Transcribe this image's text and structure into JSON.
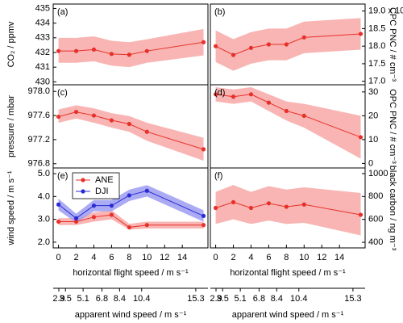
{
  "x_axis": {
    "label": "horizontal flight speed / m s⁻¹",
    "xlim": [
      -0.6,
      16.9
    ],
    "xticks": [
      0,
      2,
      4,
      6,
      8,
      10,
      12,
      14
    ]
  },
  "apparent_axis": {
    "label": "apparent wind speed / m s⁻¹",
    "xlim": [
      2.39,
      16.4
    ],
    "xticks": [
      2.9,
      3.5,
      5.1,
      6.8,
      8.4,
      10.4,
      15.3
    ]
  },
  "chart_data": [
    {
      "type": "line",
      "panel": "(a)",
      "yaxis": "left",
      "row": 0,
      "ylabel": "CO₂ / ppmv",
      "ylim": [
        429.8,
        435.3
      ],
      "yticks": [
        430,
        431,
        432,
        433,
        434,
        435
      ],
      "x": [
        0,
        2,
        4,
        6,
        8,
        10,
        16.4
      ],
      "series": [
        {
          "color": "#e8302a",
          "band_color": "#f7a8a6",
          "values": [
            432.1,
            432.1,
            432.2,
            431.9,
            431.85,
            432.1,
            432.7
          ],
          "lower": [
            431.3,
            431.3,
            431.4,
            431.1,
            431.0,
            431.3,
            431.8
          ],
          "upper": [
            433.0,
            433.0,
            433.1,
            432.8,
            432.7,
            432.9,
            433.6
          ]
        }
      ]
    },
    {
      "type": "line",
      "panel": "(b)",
      "yaxis": "right",
      "row": 0,
      "ylabel": "CPC PNC / # cm⁻³",
      "ylim": [
        16.9,
        19.2
      ],
      "yticks": [
        {
          "value": 17,
          "label": "17.0"
        },
        17.5,
        {
          "value": 18,
          "label": "18.0"
        },
        18.5,
        {
          "value": 19,
          "label": "19.0 x 10³"
        }
      ],
      "x": [
        0,
        2,
        4,
        6,
        8,
        10,
        16.4
      ],
      "series": [
        {
          "color": "#e8302a",
          "band_color": "#f7a8a6",
          "values": [
            18.0,
            17.75,
            17.95,
            18.05,
            18.05,
            18.25,
            18.35
          ],
          "lower": [
            17.55,
            17.3,
            17.5,
            17.6,
            17.6,
            17.8,
            17.9
          ],
          "upper": [
            18.45,
            18.2,
            18.4,
            18.5,
            18.5,
            18.7,
            18.8
          ]
        }
      ]
    },
    {
      "type": "line",
      "panel": "(c)",
      "yaxis": "left",
      "row": 1,
      "ylabel": "pressure / mbar",
      "ylim": [
        976.73,
        978.11
      ],
      "yticks": [
        976.8,
        977.2,
        977.6,
        {
          "value": 978,
          "label": "978.0"
        }
      ],
      "x": [
        0,
        2,
        4,
        6,
        8,
        10,
        16.4
      ],
      "series": [
        {
          "color": "#e8302a",
          "band_color": "#f7a8a6",
          "values": [
            977.58,
            977.66,
            977.6,
            977.52,
            977.46,
            977.33,
            977.04
          ],
          "lower": [
            977.48,
            977.55,
            977.48,
            977.4,
            977.33,
            977.18,
            976.85
          ],
          "upper": [
            977.7,
            977.77,
            977.72,
            977.64,
            977.59,
            977.48,
            977.23
          ]
        }
      ]
    },
    {
      "type": "line",
      "panel": "(d)",
      "yaxis": "right",
      "row": 1,
      "ylabel": "OPC PNC / # cm⁻³",
      "ylim": [
        -1.9,
        33
      ],
      "yticks": [
        0,
        10,
        20,
        30
      ],
      "x": [
        0,
        2,
        4,
        6,
        8,
        10,
        16.4
      ],
      "series": [
        {
          "color": "#e8302a",
          "band_color": "#f7a8a6",
          "values": [
            29,
            28,
            29,
            25.5,
            22,
            20,
            11
          ],
          "lower": [
            26,
            25,
            26,
            22,
            18,
            15,
            2
          ],
          "upper": [
            32,
            31,
            32,
            29,
            26,
            25,
            20
          ]
        }
      ]
    },
    {
      "type": "line",
      "panel": "(e)",
      "yaxis": "left",
      "row": 2,
      "ylabel": "wind speed / m s⁻¹",
      "ylim": [
        1.75,
        5.25
      ],
      "yticks": [
        {
          "value": 2,
          "label": "2.0"
        },
        {
          "value": 3,
          "label": "3.0"
        },
        {
          "value": 4,
          "label": "4.0"
        },
        {
          "value": 5,
          "label": "5.0"
        }
      ],
      "x": [
        0,
        2,
        4,
        6,
        8,
        10,
        16.4
      ],
      "legend": "upper left",
      "series": [
        {
          "name": "ANE",
          "color": "#e8302a",
          "band_color": "#f7a8a6",
          "values": [
            2.9,
            2.9,
            3.1,
            3.2,
            2.65,
            2.75,
            2.75
          ],
          "lower": [
            2.75,
            2.75,
            2.9,
            3.0,
            2.55,
            2.6,
            2.6
          ],
          "upper": [
            3.05,
            3.05,
            3.3,
            3.4,
            2.8,
            2.9,
            2.9
          ]
        },
        {
          "name": "DJI",
          "color": "#2b2bd6",
          "band_color": "#9c9cf2",
          "values": [
            3.65,
            3.05,
            3.6,
            3.6,
            4.05,
            4.25,
            3.15
          ],
          "lower": [
            3.4,
            2.85,
            3.35,
            3.35,
            3.8,
            4.0,
            2.9
          ],
          "upper": [
            3.9,
            3.25,
            3.85,
            3.85,
            4.3,
            4.5,
            3.4
          ]
        }
      ]
    },
    {
      "type": "line",
      "panel": "(f)",
      "yaxis": "right",
      "row": 2,
      "ylabel": "black carbon / ng m⁻³",
      "ylim": [
        351,
        1049
      ],
      "yticks": [
        400,
        600,
        800,
        1000
      ],
      "x": [
        0,
        2,
        4,
        6,
        8,
        10,
        16.4
      ],
      "series": [
        {
          "color": "#e8302a",
          "band_color": "#f7a8a6",
          "values": [
            700,
            750,
            700,
            740,
            710,
            730,
            640
          ],
          "lower": [
            560,
            600,
            560,
            590,
            560,
            570,
            460
          ],
          "upper": [
            840,
            900,
            840,
            890,
            860,
            880,
            830
          ]
        }
      ]
    }
  ]
}
